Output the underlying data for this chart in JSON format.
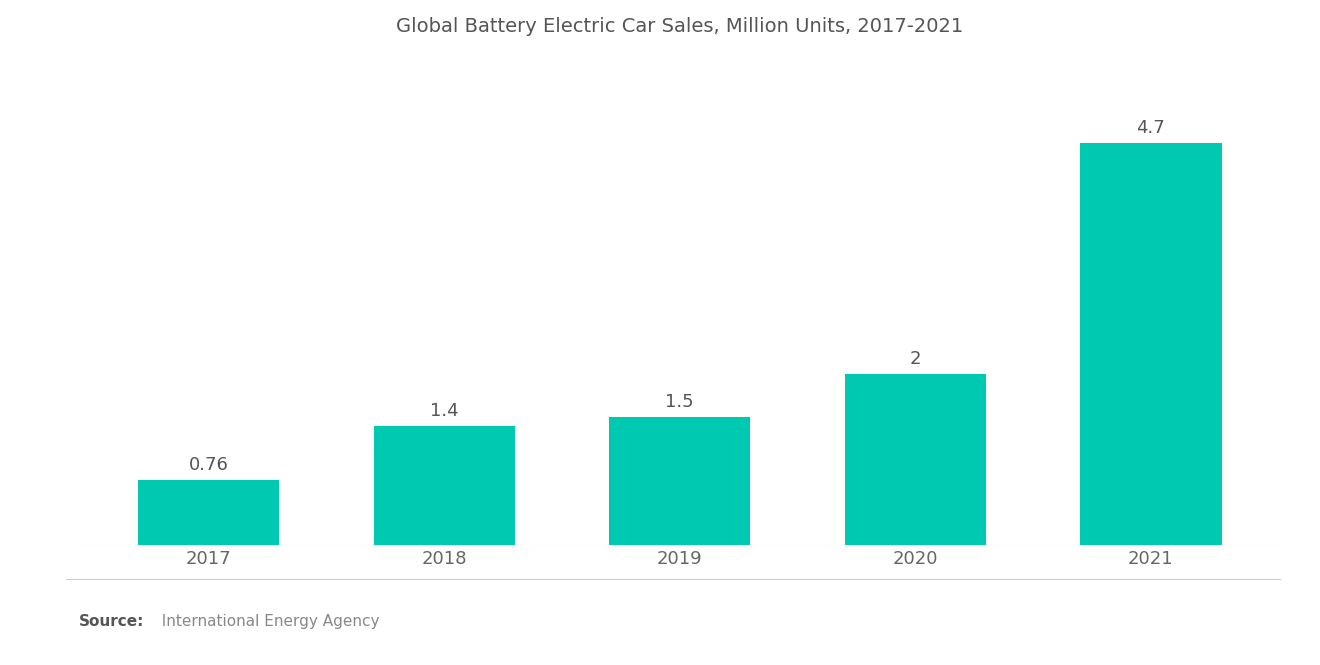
{
  "title": "Global Battery Electric Car Sales, Million Units, 2017-2021",
  "categories": [
    "2017",
    "2018",
    "2019",
    "2020",
    "2021"
  ],
  "values": [
    0.76,
    1.4,
    1.5,
    2.0,
    4.7
  ],
  "bar_color": "#00C9B1",
  "bar_labels": [
    "0.76",
    "1.4",
    "1.5",
    "2",
    "4.7"
  ],
  "title_fontsize": 14,
  "label_fontsize": 13,
  "xtick_fontsize": 13,
  "source_bold": "Source:",
  "source_normal": "  International Energy Agency",
  "source_fontsize": 11,
  "background_color": "#ffffff",
  "ylim": [
    0,
    5.6
  ],
  "bar_width": 0.6,
  "title_color": "#555555",
  "tick_color": "#666666",
  "label_color": "#555555"
}
